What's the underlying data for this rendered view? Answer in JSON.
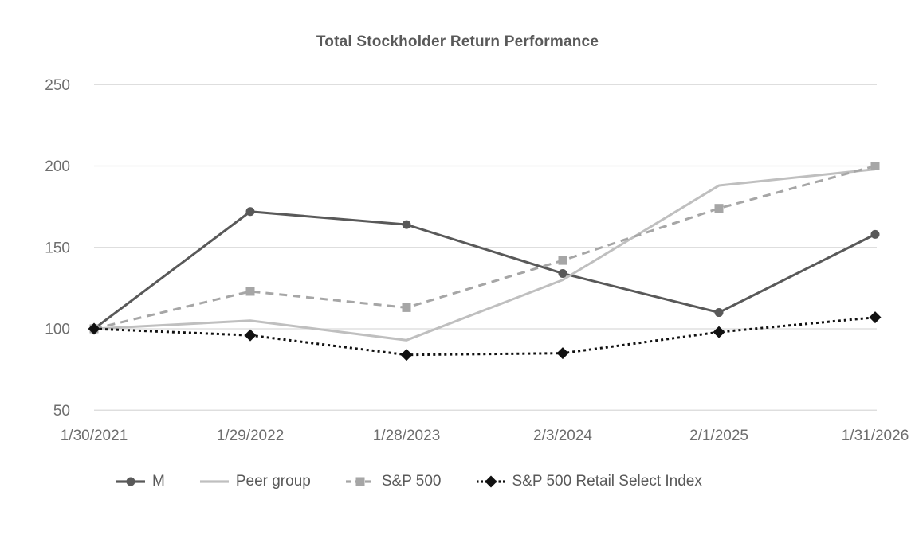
{
  "page": {
    "background": "#ffffff"
  },
  "chart_data": {
    "type": "line",
    "title": "Total Stockholder Return Performance",
    "x_labels": [
      "1/30/2021",
      "1/29/2022",
      "1/28/2023",
      "2/3/2024",
      "2/1/2025",
      "1/31/2026"
    ],
    "y_ticks": [
      250,
      200,
      150,
      100,
      50
    ],
    "ylim": [
      50,
      250
    ],
    "grid": "horizontal",
    "gridline_color": "#d9d9d9",
    "axis_label_color": "#6e6e6e",
    "title_color": "#595959",
    "legend_position": "bottom",
    "legend_text_color": "#595959",
    "series": [
      {
        "name": "M",
        "color": "#595959",
        "line_style": "solid",
        "marker": "circle",
        "values": [
          100,
          172,
          164,
          134,
          110,
          158
        ]
      },
      {
        "name": "Peer group",
        "color": "#bfbfbf",
        "line_style": "solid",
        "marker": "none",
        "values": [
          100,
          105,
          93,
          130,
          188,
          198
        ]
      },
      {
        "name": "S&P 500",
        "color": "#a6a6a6",
        "line_style": "dashed",
        "marker": "square",
        "values": [
          100,
          123,
          113,
          142,
          174,
          200
        ]
      },
      {
        "name": "S&P 500 Retail Select Index",
        "color": "#111111",
        "line_style": "dotted",
        "marker": "diamond",
        "values": [
          100,
          96,
          84,
          85,
          98,
          107
        ]
      }
    ]
  }
}
